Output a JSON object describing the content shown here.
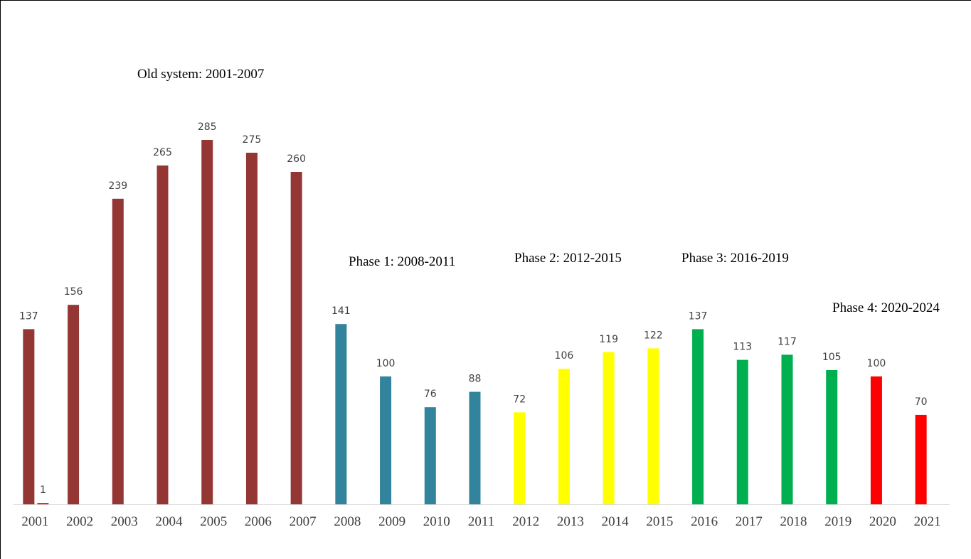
{
  "chart_data": {
    "type": "bar",
    "categories": [
      "2001",
      "2002",
      "2003",
      "2004",
      "2005",
      "2006",
      "2007",
      "2008",
      "2009",
      "2010",
      "2011",
      "2012",
      "2013",
      "2014",
      "2015",
      "2016",
      "2017",
      "2018",
      "2019",
      "2020",
      "2021"
    ],
    "series": [
      {
        "colors": [
          "#943634",
          "#943634",
          "#943634",
          "#943634",
          "#943634",
          "#943634",
          "#943634",
          "#31849b",
          "#31849b",
          "#31849b",
          "#31849b",
          "#ffff00",
          "#ffff00",
          "#ffff00",
          "#ffff00",
          "#00b050",
          "#00b050",
          "#00b050",
          "#00b050",
          "#ff0000",
          "#ff0000"
        ],
        "values": [
          137,
          156,
          239,
          265,
          285,
          275,
          260,
          141,
          100,
          76,
          88,
          72,
          106,
          119,
          122,
          137,
          113,
          117,
          105,
          100,
          70
        ]
      },
      {
        "color": "#ff0000",
        "values": [
          1,
          null,
          null,
          null,
          null,
          null,
          null,
          null,
          null,
          null,
          null,
          null,
          null,
          null,
          null,
          null,
          null,
          null,
          null,
          null,
          null
        ]
      }
    ],
    "annotations": [
      "Old system: 2001-2007",
      "Phase 1: 2008-2011",
      "Phase 2: 2012-2015",
      "Phase 3: 2016-2019",
      "Phase 4: 2020-2024"
    ],
    "ylim": [
      0,
      300
    ]
  }
}
